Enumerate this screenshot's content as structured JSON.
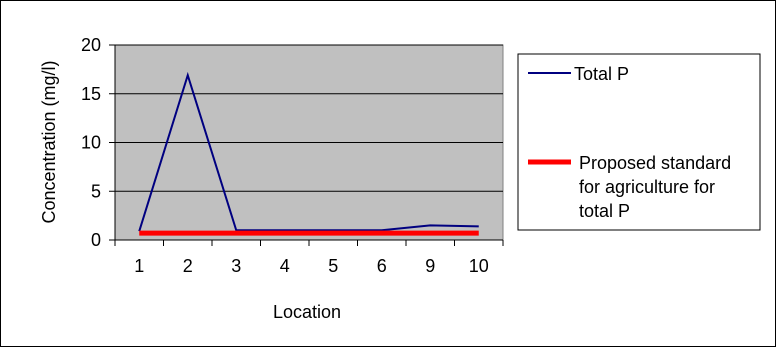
{
  "chart_data": {
    "type": "line",
    "title": "",
    "xlabel": "Location",
    "ylabel": "Concentration (mg/l)",
    "categories": [
      "1",
      "2",
      "3",
      "4",
      "5",
      "6",
      "9",
      "10"
    ],
    "ylim": [
      0,
      20
    ],
    "yticks": [
      "0",
      "5",
      "10",
      "15",
      "20"
    ],
    "grid": true,
    "plot_background": "#c0c0c0",
    "legend_position": "right",
    "series": [
      {
        "name": "Total P",
        "color": "#000080",
        "values": [
          0.9,
          16.9,
          1.0,
          1.0,
          1.0,
          1.0,
          1.5,
          1.4
        ]
      },
      {
        "name_lines": [
          "Proposed standard",
          "for agriculture for",
          "total P"
        ],
        "color": "#ff0000",
        "values": [
          0.7,
          0.7,
          0.7,
          0.7,
          0.7,
          0.7,
          0.7,
          0.7
        ]
      }
    ]
  }
}
